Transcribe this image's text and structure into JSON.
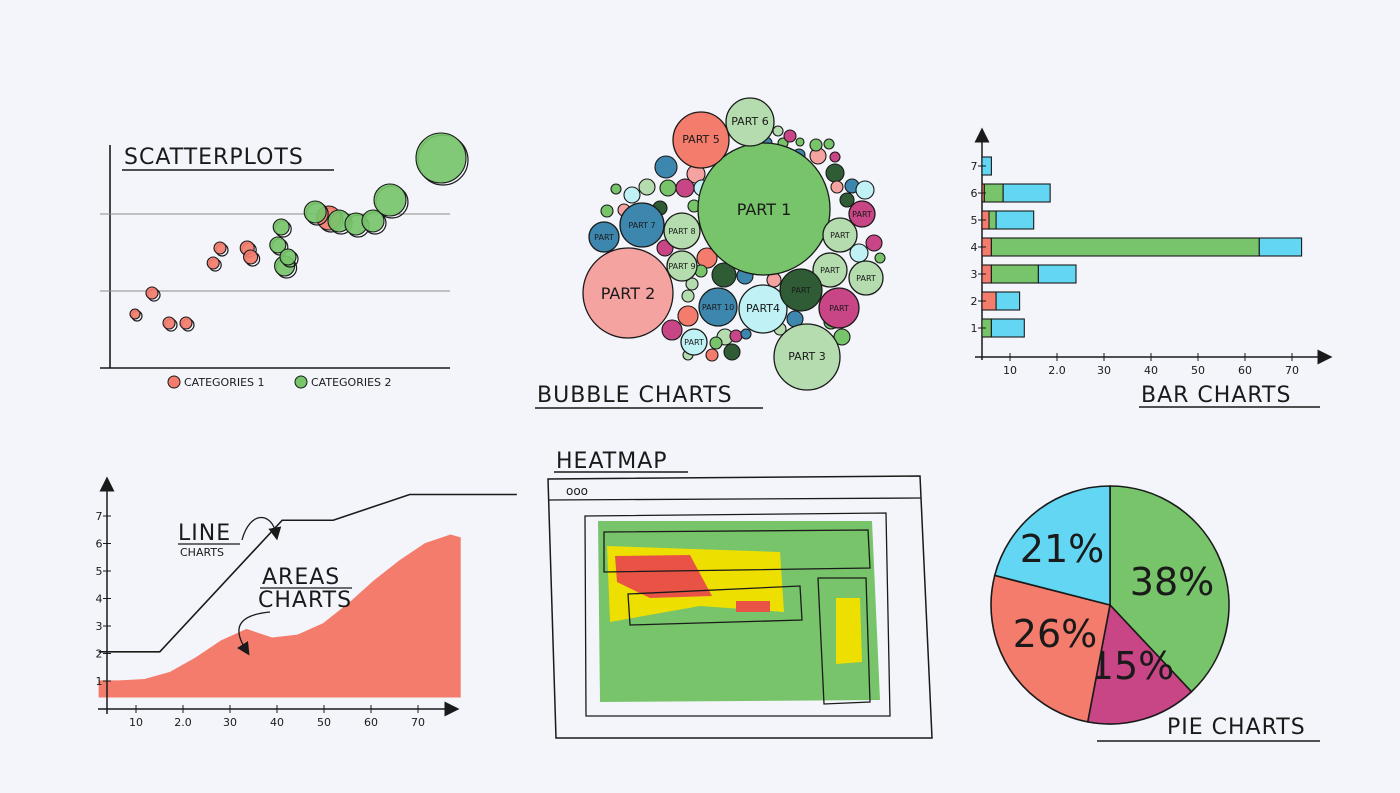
{
  "colors": {
    "red": "#f47c6c",
    "green": "#77c46a",
    "cyan": "#62d6f2",
    "yellow": "#ede000",
    "magenta": "#c84586",
    "pink": "#f5a3a0",
    "teal": "#3d86ad",
    "darkgreen": "#2f5c35",
    "lightgreen": "#b5dcae",
    "lightcyan": "#bff1f5",
    "ink": "#1a1a1a"
  },
  "chart_data": [
    {
      "type": "scatter",
      "title": "SCATTERPLOTS",
      "legend": {
        "placement": "bottom",
        "entries": [
          "CATEGORIES 1",
          "CATEGORIES 2"
        ]
      },
      "grid": true,
      "series": [
        {
          "name": "CATEGORIES 1",
          "color": "red",
          "points": [
            [
              5,
              1.8,
              5
            ],
            [
              10,
              2.5,
              6
            ],
            [
              15,
              1.5,
              6
            ],
            [
              20,
              1.5,
              6
            ],
            [
              28,
              3.5,
              6
            ],
            [
              30,
              4.0,
              6
            ],
            [
              38,
              4.0,
              7
            ],
            [
              39,
              3.7,
              7
            ],
            [
              62,
              5.0,
              12
            ]
          ]
        },
        {
          "name": "CATEGORIES 2",
          "color": "green",
          "points": [
            [
              48,
              4.7,
              8
            ],
            [
              47,
              4.1,
              8
            ],
            [
              49,
              3.4,
              10
            ],
            [
              50,
              3.7,
              8
            ],
            [
              58,
              5.2,
              11
            ],
            [
              65,
              4.9,
              11
            ],
            [
              70,
              4.8,
              11
            ],
            [
              75,
              4.9,
              11
            ],
            [
              80,
              5.6,
              16
            ],
            [
              95,
              7.0,
              25
            ]
          ]
        }
      ]
    },
    {
      "type": "bubble",
      "title": "BUBBLE CHARTS",
      "bubbles": [
        {
          "label": "PART 1",
          "color": "green",
          "size": 66
        },
        {
          "label": "PART 2",
          "color": "pink",
          "size": 45
        },
        {
          "label": "PART 3",
          "color": "lightgreen",
          "size": 33
        },
        {
          "label": "PART4",
          "color": "lightcyan",
          "size": 24
        },
        {
          "label": "PART 5",
          "color": "red",
          "size": 28
        },
        {
          "label": "PART 6",
          "color": "lightgreen",
          "size": 24
        },
        {
          "label": "PART 7",
          "color": "teal",
          "size": 22
        },
        {
          "label": "PART 8",
          "color": "lightgreen",
          "size": 18
        },
        {
          "label": "PART 9",
          "color": "lightgreen",
          "size": 15
        },
        {
          "label": "PART 10",
          "color": "teal",
          "size": 19
        },
        {
          "label": "PART",
          "color": "lightgreen",
          "size": 17
        },
        {
          "label": "PART",
          "color": "lightgreen",
          "size": 17
        },
        {
          "label": "PART",
          "color": "lightgreen",
          "size": 17
        },
        {
          "label": "PART",
          "color": "magenta",
          "size": 13
        },
        {
          "label": "PART",
          "color": "darkgreen",
          "size": 21
        },
        {
          "label": "PART",
          "color": "magenta",
          "size": 20
        },
        {
          "label": "PART",
          "color": "teal",
          "size": 15
        },
        {
          "label": "PART",
          "color": "lightcyan",
          "size": 13
        }
      ]
    },
    {
      "type": "bar",
      "orientation": "horizontal",
      "title": "BAR CHARTS",
      "categories": [
        "1",
        "2",
        "3",
        "4",
        "5",
        "6",
        "7"
      ],
      "x_ticks": [
        "10",
        "2.0",
        "30",
        "40",
        "50",
        "60",
        "70"
      ],
      "xlim": [
        3,
        73
      ],
      "series": [
        {
          "name": "red",
          "color": "red",
          "values": [
            0,
            3,
            2,
            2,
            1.5,
            0.5,
            0
          ]
        },
        {
          "name": "green",
          "color": "green",
          "values": [
            2,
            0,
            10,
            57,
            1.5,
            4,
            0
          ]
        },
        {
          "name": "cyan",
          "color": "cyan",
          "values": [
            7,
            5,
            8,
            9,
            8,
            10,
            2
          ]
        }
      ]
    },
    {
      "type": "area",
      "title": "LINE CHARTS",
      "subtitle": "LINE",
      "area_label_1": "AREAS",
      "area_label_2": "CHARTS",
      "x_ticks": [
        "10",
        "2.0",
        "30",
        "40",
        "50",
        "60",
        "70"
      ],
      "y_ticks": [
        "1",
        "2",
        "3",
        "4",
        "5",
        "6",
        "7"
      ],
      "line": {
        "x": [
          6,
          18,
          42,
          52,
          67,
          75,
          88
        ],
        "y": [
          2,
          2,
          6.6,
          6.6,
          7.5,
          7.5,
          7.5
        ]
      },
      "area": {
        "x": [
          6,
          10,
          15,
          20,
          25,
          30,
          35,
          40,
          45,
          50,
          55,
          60,
          65,
          70,
          75,
          77
        ],
        "y": [
          1,
          1,
          1.05,
          1.3,
          1.8,
          2.4,
          2.8,
          2.5,
          2.6,
          3,
          3.7,
          4.5,
          5.2,
          5.8,
          6.1,
          6
        ]
      }
    },
    {
      "type": "heatmap",
      "title": "HEATMAP",
      "window_dots": "ooo",
      "intensities": [
        "green",
        "yellow",
        "red"
      ]
    },
    {
      "type": "pie",
      "title": "PIE CHARTS",
      "slices": [
        {
          "label": "38%",
          "value": 38,
          "color": "green"
        },
        {
          "label": "15%",
          "value": 15,
          "color": "magenta"
        },
        {
          "label": "26%",
          "value": 26,
          "color": "red"
        },
        {
          "label": "21%",
          "value": 21,
          "color": "cyan"
        }
      ]
    }
  ]
}
